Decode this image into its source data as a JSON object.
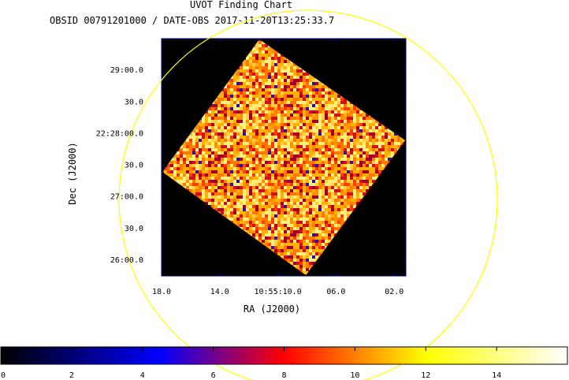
{
  "chart_data": {
    "type": "heatmap",
    "title": "UVOT Finding Chart",
    "subtitle": "OBSID 00791201000 / DATE-OBS 2017-11-20T13:25:33.7",
    "xlabel": "RA (J2000)",
    "ylabel": "Dec (J2000)",
    "x_ticks": [
      "18.0",
      "14.0",
      "10:55:10.0",
      "06.0",
      "02.0"
    ],
    "x_tick_seconds": [
      18.0,
      14.0,
      10.0,
      6.0,
      2.0
    ],
    "xlim_seconds": [
      18.0,
      1.2
    ],
    "y_ticks": [
      "29:00.0",
      "30.0",
      "22:28:00.0",
      "30.0",
      "27:00.0",
      "30.0",
      "26:00.0"
    ],
    "y_tick_arcsec": [
      180,
      150,
      120,
      90,
      60,
      30,
      0
    ],
    "ylim_arcsec": [
      -15,
      210
    ],
    "colorbar": {
      "ticks": [
        "0",
        "2",
        "4",
        "6",
        "8",
        "10",
        "12",
        "14"
      ],
      "tick_values": [
        0,
        2,
        4,
        6,
        8,
        10,
        12,
        14
      ],
      "range": [
        0,
        16
      ]
    },
    "colormap": [
      "#000000",
      "#0000ff",
      "#ff0000",
      "#ffff00",
      "#ffffff"
    ],
    "circle_color": "#ffff00",
    "frame_color": "#000080",
    "background_color": "#000000"
  }
}
